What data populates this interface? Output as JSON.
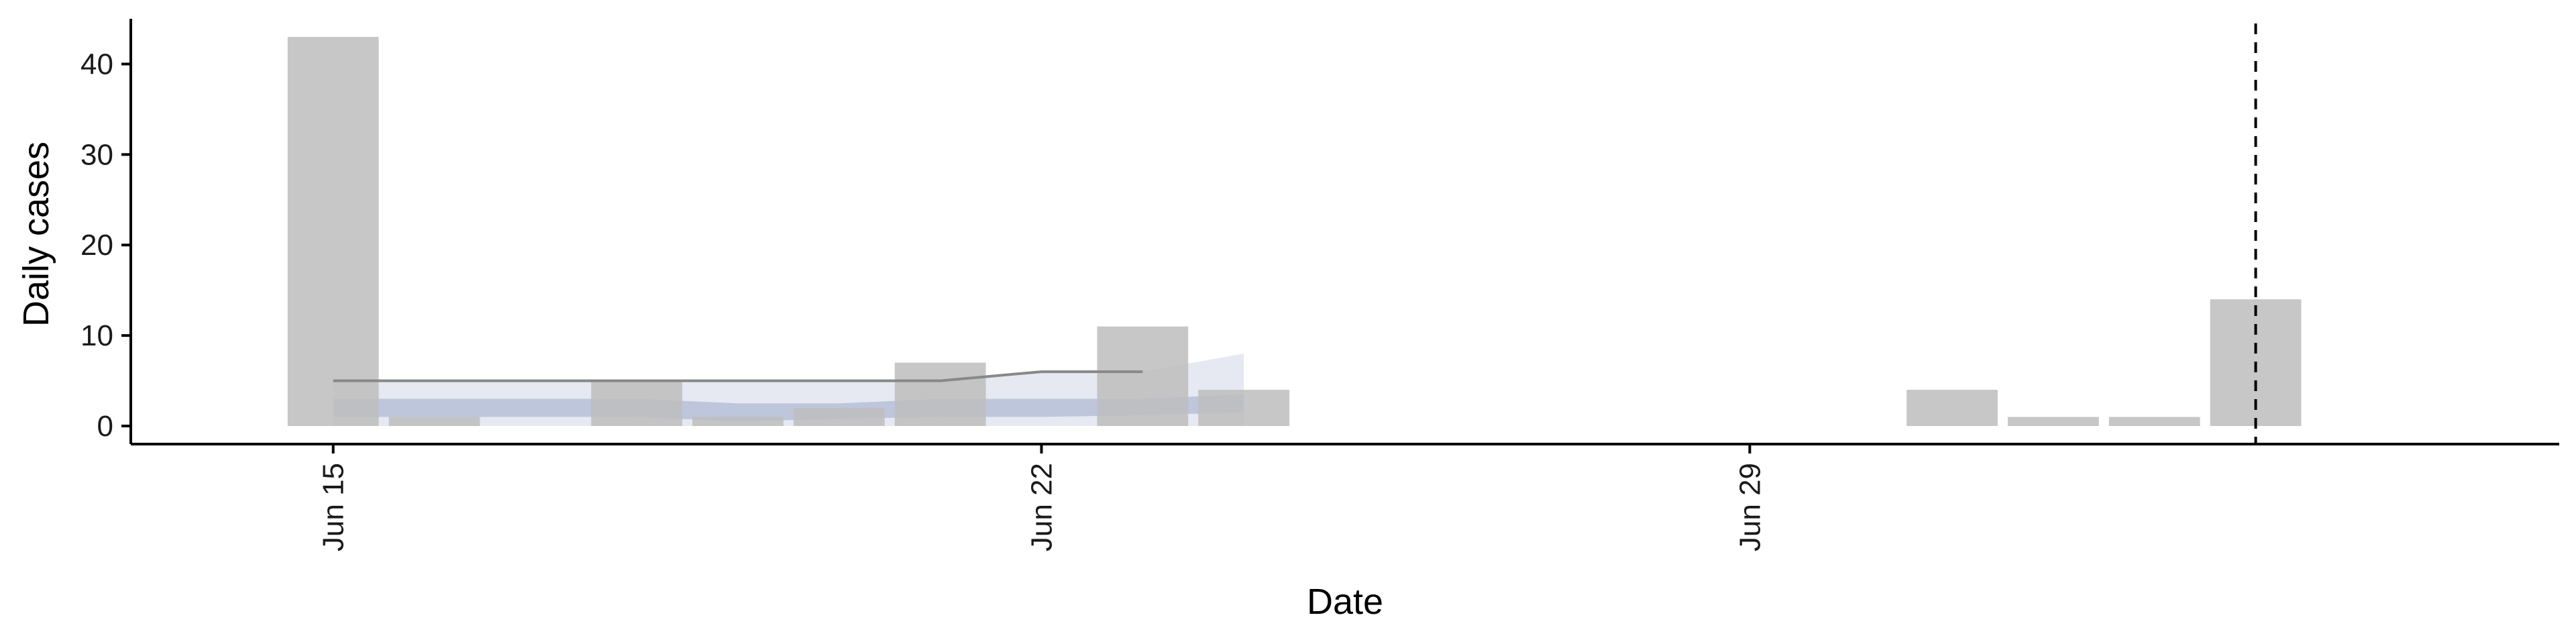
{
  "chart_data": {
    "type": "bar",
    "xlabel": "Date",
    "ylabel": "Daily cases",
    "ylim": [
      -2,
      45
    ],
    "y_ticks": [
      0,
      10,
      20,
      30,
      40
    ],
    "x_ticks": [
      {
        "date": "2020-06-15",
        "label": "Jun 15"
      },
      {
        "date": "2020-06-22",
        "label": "Jun 22"
      },
      {
        "date": "2020-06-29",
        "label": "Jun 29"
      }
    ],
    "xlim": [
      "2020-06-13",
      "2020-07-07"
    ],
    "grid": false,
    "bar_color": "#bdbdbd",
    "bars": [
      {
        "date": "2020-06-15",
        "value": 43
      },
      {
        "date": "2020-06-16",
        "value": 1
      },
      {
        "date": "2020-06-18",
        "value": 5
      },
      {
        "date": "2020-06-19",
        "value": 1
      },
      {
        "date": "2020-06-20",
        "value": 2
      },
      {
        "date": "2020-06-21",
        "value": 7
      },
      {
        "date": "2020-06-23",
        "value": 11
      },
      {
        "date": "2020-06-24",
        "value": 4
      },
      {
        "date": "2020-07-01",
        "value": 4
      },
      {
        "date": "2020-07-02",
        "value": 1
      },
      {
        "date": "2020-07-03",
        "value": 1
      },
      {
        "date": "2020-07-04",
        "value": 14
      }
    ],
    "outer_band": {
      "color": "#b8bfd8",
      "dates": [
        "2020-06-15",
        "2020-06-16",
        "2020-06-17",
        "2020-06-18",
        "2020-06-19",
        "2020-06-20",
        "2020-06-21",
        "2020-06-22",
        "2020-06-23",
        "2020-06-24"
      ],
      "lower": [
        0,
        0,
        0,
        0,
        0,
        0,
        0,
        0,
        0,
        0
      ],
      "upper": [
        5,
        5,
        5,
        5,
        5,
        5,
        5,
        6,
        6,
        8
      ]
    },
    "inner_band": {
      "color": "#8d9bc4",
      "dates": [
        "2020-06-15",
        "2020-06-16",
        "2020-06-17",
        "2020-06-18",
        "2020-06-19",
        "2020-06-20",
        "2020-06-21",
        "2020-06-22",
        "2020-06-23",
        "2020-06-24"
      ],
      "lower": [
        1,
        1,
        1,
        1,
        0.5,
        0.8,
        1,
        1,
        1.2,
        1.5
      ],
      "upper": [
        3,
        3,
        3,
        3,
        2.5,
        2.5,
        3,
        3,
        3,
        3.5
      ]
    },
    "median_line": {
      "color": "#888888",
      "dates": [
        "2020-06-15",
        "2020-06-16",
        "2020-06-17",
        "2020-06-18",
        "2020-06-19",
        "2020-06-20",
        "2020-06-21",
        "2020-06-22",
        "2020-06-23"
      ],
      "values": [
        5,
        5,
        5,
        5,
        5,
        5,
        5,
        6,
        6
      ]
    },
    "vline_date": "2020-07-04"
  }
}
